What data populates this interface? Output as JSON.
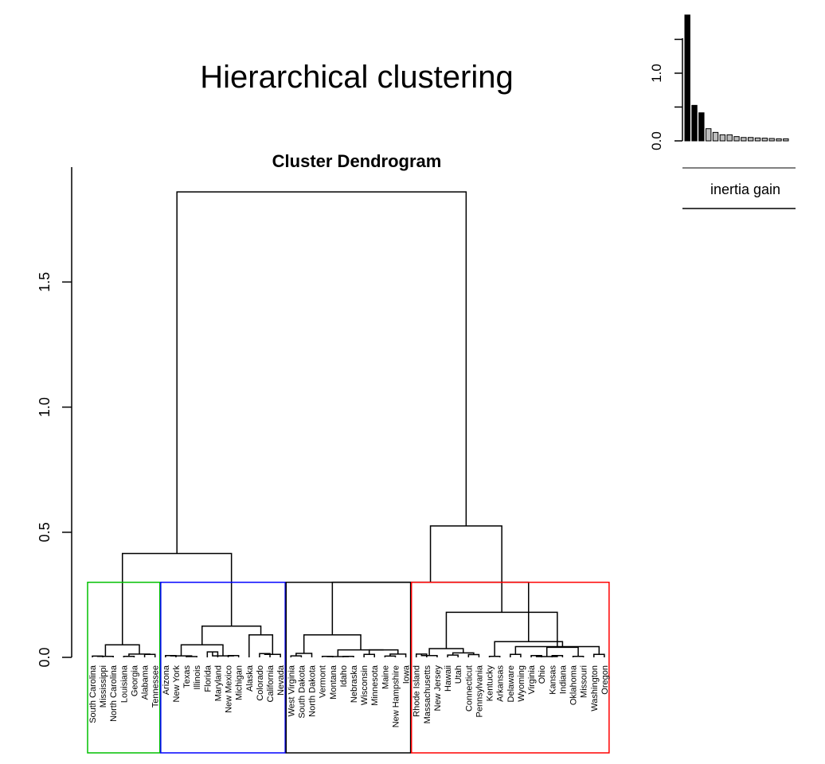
{
  "page": {
    "title": "Hierarchical clustering"
  },
  "chart_data": [
    {
      "type": "dendrogram",
      "title": "Cluster Dendrogram",
      "ylabel": "",
      "ylim": [
        0,
        1.87
      ],
      "yticks": [
        "0.0",
        "0.5",
        "1.0",
        "1.5"
      ],
      "ytick_values": [
        0,
        0.5,
        1.0,
        1.5
      ],
      "leaves": [
        "South Carolina",
        "Mississippi",
        "North Carolina",
        "Louisiana",
        "Georgia",
        "Alabama",
        "Tennessee",
        "Arizona",
        "New York",
        "Texas",
        "Illinois",
        "Florida",
        "Maryland",
        "New Mexico",
        "Michigan",
        "Alaska",
        "Colorado",
        "California",
        "Nevada",
        "West Virginia",
        "South Dakota",
        "North Dakota",
        "Vermont",
        "Montana",
        "Idaho",
        "Nebraska",
        "Wisconsin",
        "Minnesota",
        "Maine",
        "New Hampshire",
        "Iowa",
        "Rhode Island",
        "Massachusetts",
        "New Jersey",
        "Hawaii",
        "Utah",
        "Connecticut",
        "Pennsylvania",
        "Kentucky",
        "Arkansas",
        "Delaware",
        "Wyoming",
        "Virginia",
        "Ohio",
        "Kansas",
        "Indiana",
        "Oklahoma",
        "Missouri",
        "Washington",
        "Oregon"
      ],
      "merges": [
        [
          0,
          1,
          0.005
        ],
        [
          50,
          2,
          0.004
        ],
        [
          3,
          4,
          0.004
        ],
        [
          5,
          6,
          0.012
        ],
        [
          52,
          53,
          0.013
        ],
        [
          51,
          54,
          0.05
        ],
        [
          7,
          8,
          0.007
        ],
        [
          9,
          10,
          0.003
        ],
        [
          56,
          57,
          0.006
        ],
        [
          11,
          12,
          0.022
        ],
        [
          13,
          14,
          0.007
        ],
        [
          59,
          60,
          0.006
        ],
        [
          58,
          61,
          0.05
        ],
        [
          16,
          17,
          0.015
        ],
        [
          18,
          63,
          0.012
        ],
        [
          15,
          64,
          0.09
        ],
        [
          62,
          65,
          0.125
        ],
        [
          55,
          66,
          0.415
        ],
        [
          19,
          20,
          0.006
        ],
        [
          68,
          21,
          0.016
        ],
        [
          22,
          23,
          0.004
        ],
        [
          24,
          25,
          0.004
        ],
        [
          70,
          71,
          0.003
        ],
        [
          26,
          27,
          0.012
        ],
        [
          28,
          29,
          0.005
        ],
        [
          30,
          74,
          0.013
        ],
        [
          73,
          75,
          0.03
        ],
        [
          72,
          76,
          0.03
        ],
        [
          69,
          77,
          0.09
        ],
        [
          31,
          32,
          0.013
        ],
        [
          79,
          33,
          0.007
        ],
        [
          34,
          35,
          0.009
        ],
        [
          36,
          37,
          0.011
        ],
        [
          81,
          82,
          0.018
        ],
        [
          80,
          83,
          0.035
        ],
        [
          38,
          39,
          0.004
        ],
        [
          40,
          41,
          0.012
        ],
        [
          42,
          43,
          0.007
        ],
        [
          44,
          45,
          0.007
        ],
        [
          46,
          47,
          0.004
        ],
        [
          87,
          88,
          0.003
        ],
        [
          48,
          49,
          0.012
        ],
        [
          89,
          90,
          0.04
        ],
        [
          86,
          91,
          0.043
        ],
        [
          85,
          92,
          0.063
        ],
        [
          84,
          93,
          0.18
        ],
        [
          78,
          94,
          0.3
        ],
        [
          95,
          96,
          0.525
        ],
        [
          67,
          97,
          1.86
        ]
      ],
      "cut_height": 0.3,
      "cluster_boxes": [
        {
          "from": 0,
          "to": 6,
          "color": "#00c000"
        },
        {
          "from": 7,
          "to": 18,
          "color": "#0000ff"
        },
        {
          "from": 19,
          "to": 30,
          "color": "#000000"
        },
        {
          "from": 31,
          "to": 49,
          "color": "#ff0000"
        }
      ]
    },
    {
      "type": "bar",
      "xlabel": "inertia gain",
      "ylim": [
        0,
        1.87
      ],
      "yticks": [
        "0.0",
        "1.0"
      ],
      "ytick_values": [
        0,
        1.0
      ],
      "values": [
        1.86,
        0.525,
        0.415,
        0.18,
        0.125,
        0.09,
        0.09,
        0.063,
        0.05,
        0.05,
        0.043,
        0.04,
        0.035,
        0.03,
        0.03
      ],
      "highlighted_count": 3,
      "colors": {
        "highlighted": "#000000",
        "other": "#bebebe"
      }
    }
  ]
}
